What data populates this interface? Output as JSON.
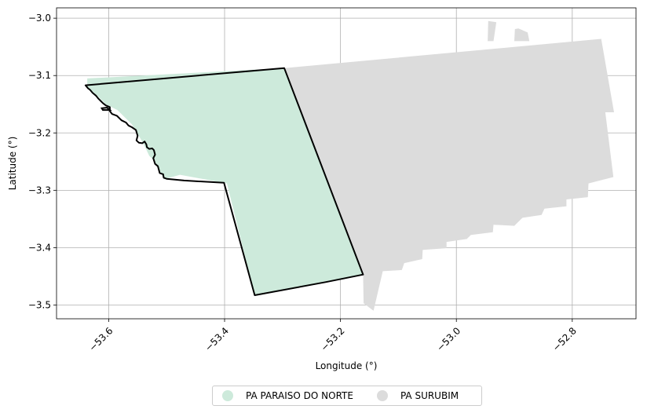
{
  "axes": {
    "xlabel": "Longitude (°)",
    "ylabel": "Latitude (°)",
    "xlim": [
      -53.69,
      -52.69
    ],
    "ylim": [
      -3.524,
      -2.982
    ],
    "xticks": [
      -53.6,
      -53.4,
      -53.2,
      -53.0,
      -52.8
    ],
    "xtick_labels": [
      "−53.6",
      "−53.4",
      "−53.2",
      "−53.0",
      "−52.8"
    ],
    "yticks": [
      -3.0,
      -3.1,
      -3.2,
      -3.3,
      -3.4,
      -3.5
    ],
    "ytick_labels": [
      "−3.0",
      "−3.1",
      "−3.2",
      "−3.3",
      "−3.4",
      "−3.5"
    ],
    "grid": true
  },
  "colors": {
    "paraiso": "#cdeadb",
    "surubim": "#dcdcdc",
    "outline": "#000000",
    "grid": "#b0b0b0"
  },
  "legend": {
    "placement": "bottom-center",
    "items": [
      {
        "label": "PA PARAISO DO NORTE",
        "color": "#cdeadb"
      },
      {
        "label": "PA SURUBIM",
        "color": "#dcdcdc"
      }
    ]
  },
  "regions": {
    "surubim": [
      [
        -53.296,
        -3.087
      ],
      [
        -52.75,
        -3.036
      ],
      [
        -52.728,
        -3.164
      ],
      [
        -52.743,
        -3.164
      ],
      [
        -52.729,
        -3.277
      ],
      [
        -52.772,
        -3.288
      ],
      [
        -52.773,
        -3.312
      ],
      [
        -52.81,
        -3.316
      ],
      [
        -52.81,
        -3.328
      ],
      [
        -52.848,
        -3.332
      ],
      [
        -52.853,
        -3.343
      ],
      [
        -52.886,
        -3.348
      ],
      [
        -52.9,
        -3.362
      ],
      [
        -52.936,
        -3.36
      ],
      [
        -52.937,
        -3.373
      ],
      [
        -52.975,
        -3.378
      ],
      [
        -52.982,
        -3.385
      ],
      [
        -53.017,
        -3.39
      ],
      [
        -53.017,
        -3.401
      ],
      [
        -53.058,
        -3.404
      ],
      [
        -53.059,
        -3.42
      ],
      [
        -53.09,
        -3.427
      ],
      [
        -53.094,
        -3.439
      ],
      [
        -53.127,
        -3.441
      ],
      [
        -53.143,
        -3.51
      ],
      [
        -53.16,
        -3.497
      ],
      [
        -53.161,
        -3.447
      ],
      [
        -53.242,
        -3.282
      ],
      [
        -53.296,
        -3.087
      ]
    ],
    "surubim_notch1": [
      [
        -52.946,
        -3.04
      ],
      [
        -52.936,
        -3.04
      ],
      [
        -52.931,
        -3.007
      ],
      [
        -52.945,
        -3.005
      ]
    ],
    "surubim_notch2": [
      [
        -52.9,
        -3.04
      ],
      [
        -52.874,
        -3.04
      ],
      [
        -52.877,
        -3.025
      ],
      [
        -52.888,
        -3.02
      ],
      [
        -52.893,
        -3.018
      ],
      [
        -52.899,
        -3.019
      ]
    ],
    "paraiso": [
      [
        -53.637,
        -3.105
      ],
      [
        -53.296,
        -3.087
      ],
      [
        -53.161,
        -3.447
      ],
      [
        -53.348,
        -3.484
      ],
      [
        -53.396,
        -3.288
      ],
      [
        -53.477,
        -3.273
      ],
      [
        -53.505,
        -3.281
      ],
      [
        -53.51,
        -3.27
      ],
      [
        -53.52,
        -3.25
      ],
      [
        -53.53,
        -3.24
      ],
      [
        -53.537,
        -3.225
      ],
      [
        -53.545,
        -3.21
      ],
      [
        -53.56,
        -3.185
      ],
      [
        -53.585,
        -3.16
      ],
      [
        -53.605,
        -3.15
      ],
      [
        -53.62,
        -3.135
      ],
      [
        -53.637,
        -3.12
      ]
    ],
    "outline": [
      [
        -53.64,
        -3.117
      ],
      [
        -53.297,
        -3.087
      ],
      [
        -53.161,
        -3.447
      ],
      [
        -53.225,
        -3.46
      ],
      [
        -53.348,
        -3.483
      ],
      [
        -53.401,
        -3.287
      ],
      [
        -53.47,
        -3.283
      ],
      [
        -53.5,
        -3.28
      ],
      [
        -53.505,
        -3.278
      ],
      [
        -53.506,
        -3.272
      ],
      [
        -53.512,
        -3.27
      ],
      [
        -53.515,
        -3.258
      ],
      [
        -53.52,
        -3.254
      ],
      [
        -53.523,
        -3.244
      ],
      [
        -53.52,
        -3.238
      ],
      [
        -53.522,
        -3.23
      ],
      [
        -53.525,
        -3.227
      ],
      [
        -53.53,
        -3.228
      ],
      [
        -53.534,
        -3.225
      ],
      [
        -53.535,
        -3.22
      ],
      [
        -53.538,
        -3.215
      ],
      [
        -53.542,
        -3.218
      ],
      [
        -53.548,
        -3.217
      ],
      [
        -53.552,
        -3.213
      ],
      [
        -53.55,
        -3.205
      ],
      [
        -53.553,
        -3.195
      ],
      [
        -53.56,
        -3.19
      ],
      [
        -53.566,
        -3.187
      ],
      [
        -53.57,
        -3.182
      ],
      [
        -53.578,
        -3.178
      ],
      [
        -53.586,
        -3.17
      ],
      [
        -53.594,
        -3.167
      ],
      [
        -53.598,
        -3.162
      ],
      [
        -53.598,
        -3.155
      ],
      [
        -53.605,
        -3.152
      ],
      [
        -53.61,
        -3.148
      ],
      [
        -53.618,
        -3.14
      ],
      [
        -53.622,
        -3.135
      ],
      [
        -53.628,
        -3.13
      ],
      [
        -53.632,
        -3.125
      ],
      [
        -53.636,
        -3.122
      ],
      [
        -53.64,
        -3.117
      ]
    ],
    "island": [
      [
        -53.612,
        -3.157
      ],
      [
        -53.603,
        -3.156
      ],
      [
        -53.598,
        -3.16
      ],
      [
        -53.61,
        -3.16
      ]
    ]
  }
}
